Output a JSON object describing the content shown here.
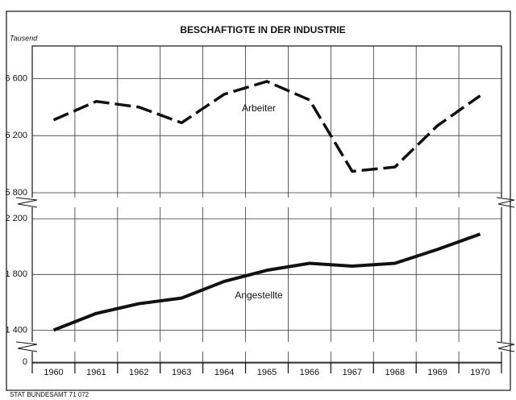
{
  "chart_data": [
    {
      "type": "line",
      "title": "BESCHAFTIGTE IN DER INDUSTRIE",
      "ylabel": "Tausend",
      "ylim": [
        5800,
        6800
      ],
      "yticks": [
        {
          "value": 5800,
          "label": "5 800"
        },
        {
          "value": 6200,
          "label": "6 200"
        },
        {
          "value": 6600,
          "label": "6 600"
        }
      ],
      "series": [
        {
          "name": "Arbeiter",
          "color": "#111111",
          "line_style": "dashed",
          "values": [
            6310,
            6440,
            6400,
            6290,
            6490,
            6580,
            6450,
            5950,
            5980,
            6270,
            6480
          ]
        }
      ]
    },
    {
      "type": "line",
      "ylim": [
        1350,
        2300
      ],
      "yticks": [
        {
          "value": 1400,
          "label": "1 400"
        },
        {
          "value": 1800,
          "label": "1 800"
        },
        {
          "value": 2200,
          "label": "2 200"
        }
      ],
      "series": [
        {
          "name": "Angestellte",
          "color": "#111111",
          "line_style": "solid",
          "values": [
            1400,
            1520,
            1590,
            1630,
            1750,
            1830,
            1880,
            1860,
            1880,
            1980,
            2090
          ]
        }
      ]
    },
    {
      "type": "axis",
      "ylim": [
        0,
        50
      ],
      "yticks": [
        0
      ],
      "categories": [
        "1960",
        "1961",
        "1962",
        "1963",
        "1964",
        "1965",
        "1966",
        "1967",
        "1968",
        "1969",
        "1970"
      ]
    }
  ],
  "source": "STAT BUNDESAMT 71 072"
}
